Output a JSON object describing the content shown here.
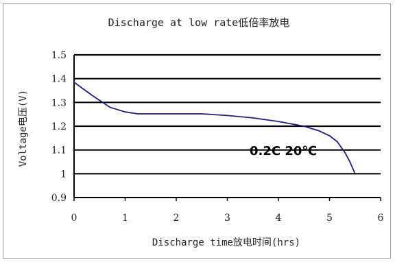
{
  "chart_data": {
    "type": "line",
    "title": "Discharge at low rate低倍率放电",
    "xlabel": "Discharge time放电时间(hrs)",
    "ylabel": "Voltage电压(V)",
    "xlim": [
      0,
      6
    ],
    "ylim": [
      0.9,
      1.5
    ],
    "x_ticks": [
      "0",
      "1",
      "2",
      "3",
      "4",
      "5",
      "6"
    ],
    "y_ticks": [
      "0.9",
      "1",
      "1.1",
      "1.2",
      "1.3",
      "1.4",
      "1.5"
    ],
    "grid": "horizontal",
    "annotation": "0.2C 20℃",
    "series": [
      {
        "color": "#1a1a8c",
        "x": [
          0,
          0.35,
          0.7,
          1.0,
          1.25,
          1.5,
          2.0,
          2.5,
          3.0,
          3.5,
          4.0,
          4.5,
          4.8,
          5.0,
          5.15,
          5.3,
          5.4,
          5.5
        ],
        "y": [
          1.385,
          1.33,
          1.28,
          1.26,
          1.252,
          1.252,
          1.252,
          1.252,
          1.245,
          1.235,
          1.22,
          1.2,
          1.18,
          1.16,
          1.135,
          1.09,
          1.05,
          1.0
        ]
      }
    ]
  }
}
